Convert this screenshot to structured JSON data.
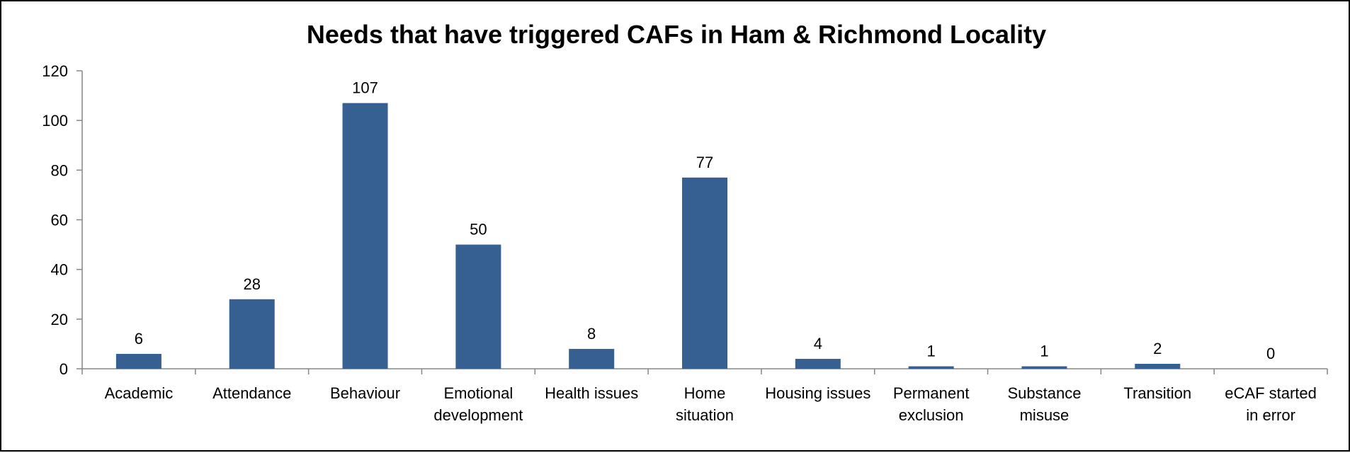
{
  "chart_data": {
    "type": "bar",
    "title": "Needs that have triggered CAFs in Ham & Richmond Locality",
    "categories": [
      [
        "Academic"
      ],
      [
        "Attendance"
      ],
      [
        "Behaviour"
      ],
      [
        "Emotional",
        "development"
      ],
      [
        "Health issues"
      ],
      [
        "Home",
        "situation"
      ],
      [
        "Housing issues"
      ],
      [
        "Permanent",
        "exclusion"
      ],
      [
        "Substance",
        "misuse"
      ],
      [
        "Transition"
      ],
      [
        "eCAF started",
        "in error"
      ]
    ],
    "values": [
      6,
      28,
      107,
      50,
      8,
      77,
      4,
      1,
      1,
      2,
      0
    ],
    "ylim": [
      0,
      120
    ],
    "yticks": [
      0,
      20,
      40,
      60,
      80,
      100,
      120
    ],
    "grid": false,
    "legend": "none",
    "bar_color": "#376092",
    "axis_color": "#868686"
  }
}
